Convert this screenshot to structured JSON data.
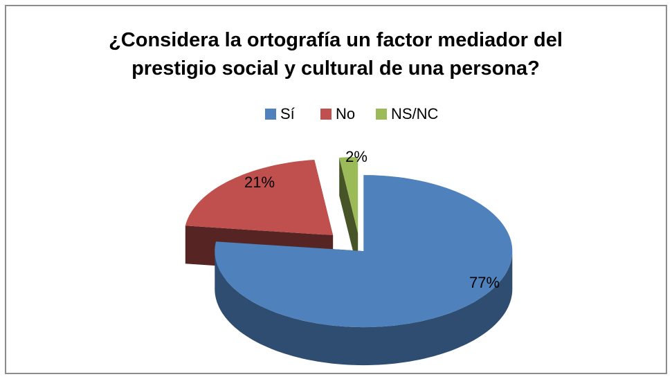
{
  "chart_data": {
    "type": "pie3d",
    "title": "¿Considera la ortografía un factor mediador del prestigio social y cultural de una persona?",
    "categories": [
      "Sí",
      "No",
      "NS/NC"
    ],
    "values": [
      77,
      21,
      2
    ],
    "value_labels": [
      "77%",
      "21%",
      "2%"
    ],
    "colors": [
      "#4f81bd",
      "#c0504d",
      "#9bbb59"
    ],
    "legend": "top"
  }
}
